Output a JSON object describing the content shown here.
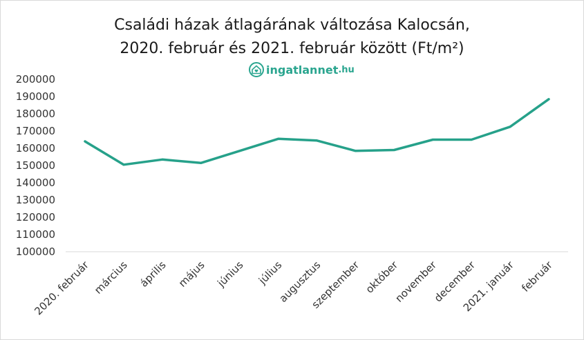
{
  "header": {
    "title_line1": "Családi házak átlagárának változása Kalocsán,",
    "title_line2": "2020. február és 2021. február között (Ft/m²)",
    "logo_text": "ingatlannet",
    "logo_tld": ".hu",
    "logo_icon": "house-heart-icon"
  },
  "chart_data": {
    "type": "line",
    "title": "Családi házak átlagárának változása Kalocsán, 2020. február és 2021. február között (Ft/m²)",
    "categories": [
      "2020. február",
      "március",
      "április",
      "május",
      "június",
      "július",
      "augusztus",
      "szeptember",
      "október",
      "november",
      "december",
      "2021. január",
      "február"
    ],
    "series": [
      {
        "values": [
          164000,
          150500,
          153500,
          151500,
          158500,
          165500,
          164500,
          158500,
          159000,
          165000,
          165000,
          172500,
          188500
        ],
        "color": "#26a18a"
      }
    ],
    "ylim": [
      100000,
      200000
    ],
    "yticks": [
      100000,
      110000,
      120000,
      130000,
      140000,
      150000,
      160000,
      170000,
      180000,
      190000,
      200000
    ],
    "ytick_labels": [
      "100000",
      "110000",
      "120000",
      "130000",
      "140000",
      "150000",
      "160000",
      "170000",
      "180000",
      "190000",
      "200000"
    ],
    "grid": false,
    "legend": "none",
    "axis_color": "#d9d9d9",
    "line_color": "#26a18a"
  }
}
